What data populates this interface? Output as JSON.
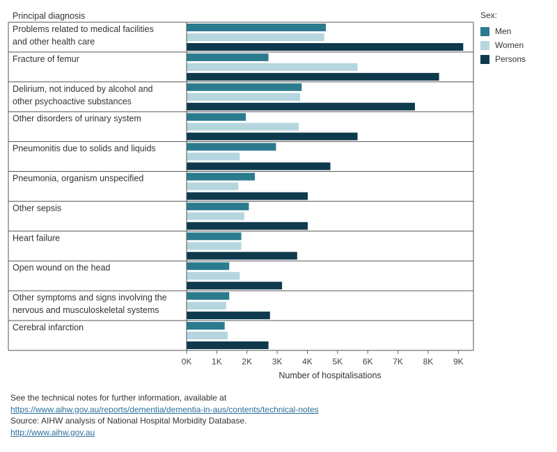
{
  "chart_data": {
    "type": "bar",
    "orientation": "horizontal",
    "row_header": "Principal diagnosis",
    "categories": [
      [
        "Problems related to medical facilities",
        "and other health care"
      ],
      [
        "Fracture of femur"
      ],
      [
        "Delirium, not induced by alcohol and",
        "other psychoactive substances"
      ],
      [
        "Other disorders of urinary system"
      ],
      [
        "Pneumonitis due to solids and liquids"
      ],
      [
        "Pneumonia, organism unspecified"
      ],
      [
        "Other sepsis"
      ],
      [
        "Heart failure"
      ],
      [
        "Open wound on the head"
      ],
      [
        "Other symptoms and signs involving the",
        "nervous and musculoskeletal systems"
      ],
      [
        "Cerebral infarction"
      ]
    ],
    "series": [
      {
        "name": "Men",
        "color": "#2b7b8f",
        "values": [
          4600,
          2700,
          3800,
          1950,
          2950,
          2250,
          2050,
          1800,
          1400,
          1400,
          1250
        ]
      },
      {
        "name": "Women",
        "color": "#b5d6df",
        "values": [
          4550,
          5650,
          3750,
          3700,
          1750,
          1700,
          1900,
          1800,
          1750,
          1300,
          1350
        ]
      },
      {
        "name": "Persons",
        "color": "#0f3a4d",
        "values": [
          9150,
          8350,
          7550,
          5650,
          4750,
          4000,
          4000,
          3650,
          3150,
          2750,
          2700
        ]
      }
    ],
    "xlim": [
      0,
      9500
    ],
    "xticks": [
      {
        "value": 0,
        "label": "0K"
      },
      {
        "value": 1000,
        "label": "1K"
      },
      {
        "value": 2000,
        "label": "2K"
      },
      {
        "value": 3000,
        "label": "3K"
      },
      {
        "value": 4000,
        "label": "4K"
      },
      {
        "value": 5000,
        "label": "5K"
      },
      {
        "value": 6000,
        "label": "6K"
      },
      {
        "value": 7000,
        "label": "7K"
      },
      {
        "value": 8000,
        "label": "8K"
      },
      {
        "value": 9000,
        "label": "9K"
      }
    ],
    "xlabel": "Number of hospitalisations",
    "legend_title": "Sex:",
    "legend_position": "top-right"
  },
  "legend": {
    "title": "Sex:",
    "items": [
      {
        "label": "Men",
        "color": "#2b7b8f"
      },
      {
        "label": "Women",
        "color": "#b5d6df"
      },
      {
        "label": "Persons",
        "color": "#0f3a4d"
      }
    ]
  },
  "footer": {
    "note": "See the technical notes for further information, available at",
    "link1": "https://www.aihw.gov.au/reports/dementia/dementia-in-aus/contents/technical-notes",
    "source": "Source: AIHW analysis of National Hospital Morbidity Database.",
    "link2": "http://www.aihw.gov.au"
  }
}
